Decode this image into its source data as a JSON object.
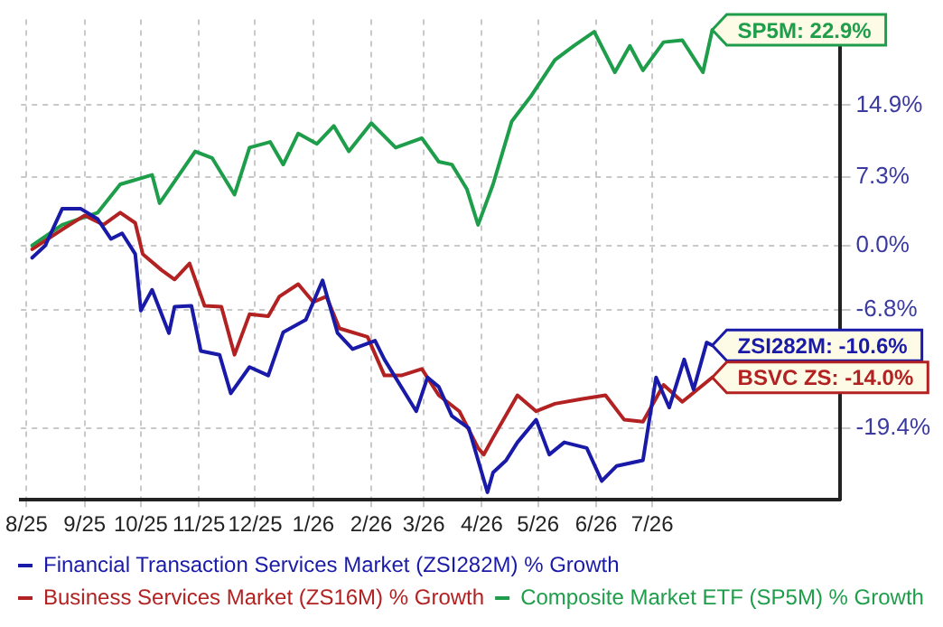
{
  "chart_data": {
    "type": "line",
    "xlim": [
      "2025-07-29",
      "2026-10-09"
    ],
    "ylim": [
      -27,
      24
    ],
    "xticks": [
      {
        "value": "2025-08-01",
        "label": "8/25"
      },
      {
        "value": "2025-09-01",
        "label": "9/25"
      },
      {
        "value": "2025-10-01",
        "label": "10/25"
      },
      {
        "value": "2025-11-01",
        "label": "11/25"
      },
      {
        "value": "2025-12-01",
        "label": "12/25"
      },
      {
        "value": "2026-01-01",
        "label": "1/26"
      },
      {
        "value": "2026-02-01",
        "label": "2/26"
      },
      {
        "value": "2026-03-01",
        "label": "3/26"
      },
      {
        "value": "2026-04-01",
        "label": "4/26"
      },
      {
        "value": "2026-05-01",
        "label": "5/26"
      },
      {
        "value": "2026-06-01",
        "label": "6/26"
      },
      {
        "value": "2026-07-01",
        "label": "7/26"
      }
    ],
    "yticks": [
      {
        "value": -19.4,
        "label": "-19.4%"
      },
      {
        "value": -6.8,
        "label": "-6.8%"
      },
      {
        "value": 0,
        "label": "0.0%"
      },
      {
        "value": 7.3,
        "label": "7.3%"
      },
      {
        "value": 14.9,
        "label": "14.9%"
      }
    ],
    "grid": true,
    "legend": "bottom",
    "marker": "none",
    "line_style": "solid",
    "series": [
      {
        "name": "Financial Transaction Services Market (ZSI282M) % Growth",
        "color": "#1a1aa8",
        "x": [
          "2025-08-04",
          "2025-08-11",
          "2025-08-20",
          "2025-08-30",
          "2025-09-08",
          "2025-09-15",
          "2025-09-21",
          "2025-09-28",
          "2025-10-01",
          "2025-10-07",
          "2025-10-16",
          "2025-10-19",
          "2025-10-28",
          "2025-11-02",
          "2025-11-12",
          "2025-11-18",
          "2025-11-28",
          "2025-12-08",
          "2025-12-16",
          "2025-12-28",
          "2026-01-06",
          "2026-01-14",
          "2026-01-22",
          "2026-02-03",
          "2026-02-08",
          "2026-02-25",
          "2026-03-03",
          "2026-03-09",
          "2026-03-16",
          "2026-03-25",
          "2026-04-04",
          "2026-04-07",
          "2026-04-14",
          "2026-04-20",
          "2026-04-30",
          "2026-05-07",
          "2026-05-15",
          "2026-05-27",
          "2026-06-04",
          "2026-06-12",
          "2026-06-26",
          "2026-07-03",
          "2026-07-10",
          "2026-07-18",
          "2026-07-23",
          "2026-07-30",
          "2026-08-02"
        ],
        "values": [
          -1.3,
          0,
          3.9,
          3.9,
          2.8,
          0.7,
          1.3,
          -0.9,
          -6.9,
          -4.7,
          -9.3,
          -6.5,
          -6.4,
          -11.2,
          -11.6,
          -15.7,
          -12.9,
          -13.8,
          -9.2,
          -7.9,
          -3.7,
          -9.3,
          -11,
          -10.1,
          -12.1,
          -17.6,
          -14,
          -15,
          -18.1,
          -19.4,
          -26.2,
          -24.1,
          -22.8,
          -20.9,
          -18.5,
          -22.2,
          -20.9,
          -21.5,
          -25,
          -23.4,
          -22.8,
          -14,
          -17.2,
          -12.1,
          -15.3,
          -10.3,
          -10.6
        ]
      },
      {
        "name": "Business Services Market (ZS16M) % Growth",
        "color": "#b22222",
        "x": [
          "2025-08-04",
          "2025-08-20",
          "2025-09-01",
          "2025-09-11",
          "2025-09-20",
          "2025-09-28",
          "2025-10-02",
          "2025-10-12",
          "2025-10-19",
          "2025-10-27",
          "2025-11-04",
          "2025-11-13",
          "2025-11-20",
          "2025-11-28",
          "2025-12-08",
          "2025-12-14",
          "2025-12-24",
          "2026-01-01",
          "2026-01-08",
          "2026-01-15",
          "2026-01-30",
          "2026-02-08",
          "2026-02-17",
          "2026-02-28",
          "2026-03-09",
          "2026-03-20",
          "2026-03-30",
          "2026-04-02",
          "2026-04-07",
          "2026-04-20",
          "2026-04-30",
          "2026-05-10",
          "2026-05-24",
          "2026-06-06",
          "2026-06-16",
          "2026-06-26",
          "2026-07-07",
          "2026-07-17",
          "2026-07-25",
          "2026-08-02"
        ],
        "values": [
          -0.4,
          1.7,
          3.2,
          2.2,
          3.5,
          2.4,
          -0.9,
          -2.6,
          -3.6,
          -1.9,
          -6.4,
          -6.5,
          -11.6,
          -7.3,
          -7.5,
          -5.4,
          -4.1,
          -6,
          -5.4,
          -8.8,
          -9.7,
          -13.8,
          -13.8,
          -13.1,
          -15.9,
          -17.6,
          -21.5,
          -22.2,
          -20.4,
          -15.9,
          -17.6,
          -16.8,
          -16.3,
          -15.9,
          -18.5,
          -18.7,
          -14.8,
          -16.6,
          -15.3,
          -14
        ]
      },
      {
        "name": "Composite Market ETF (SP5M) % Growth",
        "color": "#1e9e4a",
        "x": [
          "2025-08-04",
          "2025-08-20",
          "2025-09-08",
          "2025-09-20",
          "2025-10-07",
          "2025-10-11",
          "2025-10-30",
          "2025-11-08",
          "2025-11-20",
          "2025-11-28",
          "2025-12-09",
          "2025-12-16",
          "2025-12-24",
          "2026-01-03",
          "2026-01-12",
          "2026-01-20",
          "2026-02-01",
          "2026-02-14",
          "2026-02-28",
          "2026-03-09",
          "2026-03-16",
          "2026-03-24",
          "2026-03-30",
          "2026-04-07",
          "2026-04-17",
          "2026-04-27",
          "2026-05-10",
          "2026-05-20",
          "2026-05-31",
          "2026-06-11",
          "2026-06-19",
          "2026-06-26",
          "2026-07-07",
          "2026-07-17",
          "2026-07-28",
          "2026-08-02"
        ],
        "values": [
          0,
          2.2,
          3.5,
          6.5,
          7.5,
          4.5,
          10,
          9.3,
          5.4,
          10.4,
          11,
          8.6,
          11.9,
          10.8,
          12.7,
          10,
          13,
          10.4,
          11.4,
          8.9,
          8.6,
          6,
          2.2,
          6.5,
          13.2,
          15.8,
          19.7,
          21.2,
          22.7,
          18.4,
          21.2,
          18.6,
          21.6,
          21.8,
          18.4,
          22.9
        ]
      }
    ],
    "annotations": [
      {
        "text": "SP5M: 22.9%",
        "x": "2026-08-02",
        "y": 22.9
      },
      {
        "text": "ZSI282M: -10.6%",
        "x": "2026-08-02",
        "y": -10.6
      },
      {
        "text": "BSVC ZS: -14.0%",
        "x": "2026-08-02",
        "y": -14
      }
    ]
  }
}
